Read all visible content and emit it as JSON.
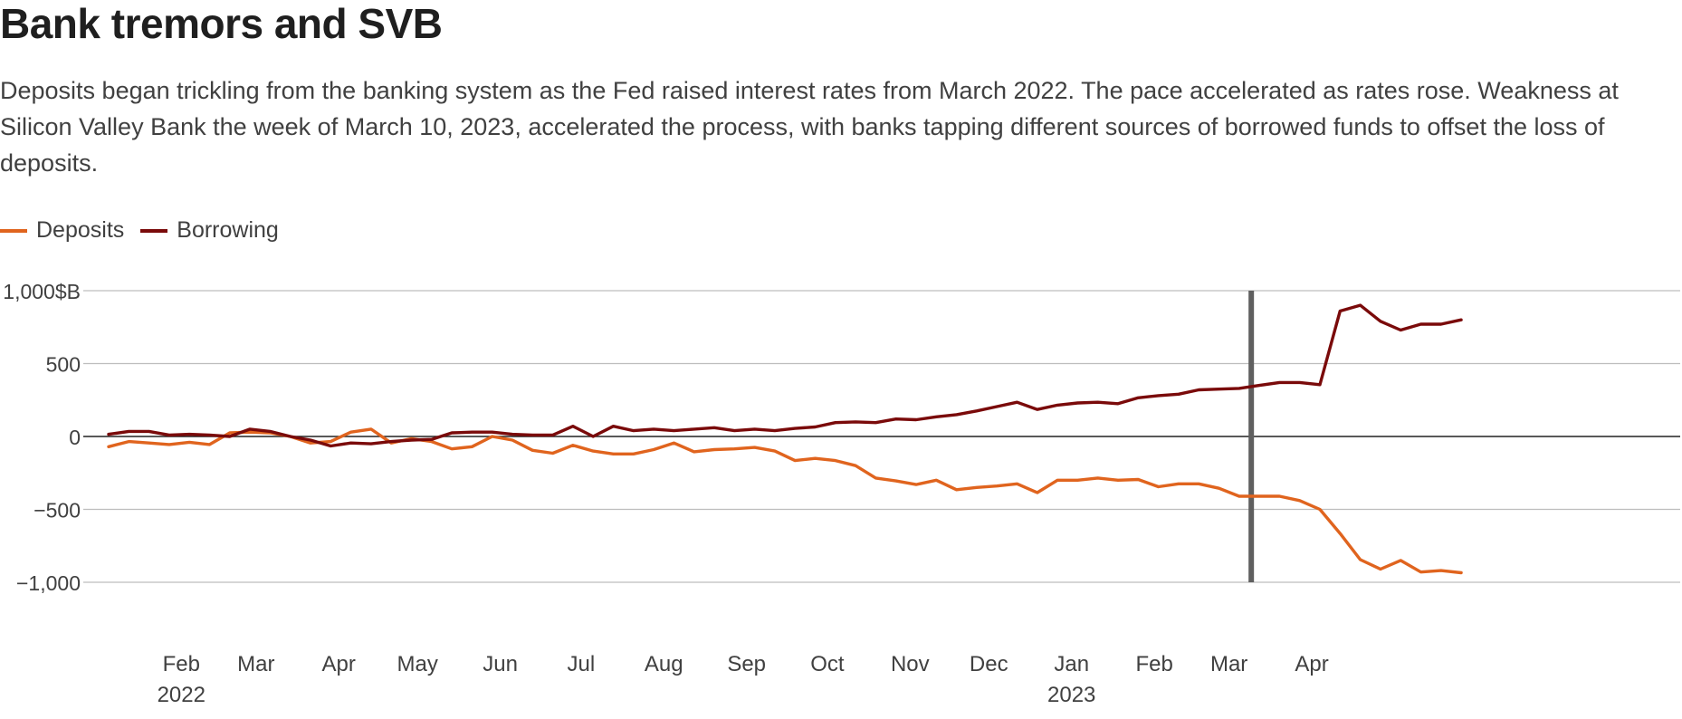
{
  "header": {
    "title": "Bank tremors and SVB",
    "subtitle": "Deposits began trickling from the banking system as the Fed raised interest rates from March 2022. The pace accelerated as rates rose. Weakness at Silicon Valley Bank the week of March 10, 2023, accelerated the process, with banks tapping different sources of borrowed funds to offset the loss of deposits."
  },
  "legend": {
    "items": [
      {
        "label": "Deposits",
        "color": "#e0641e"
      },
      {
        "label": "Borrowing",
        "color": "#7a0a0a"
      }
    ]
  },
  "chart_data": {
    "type": "line",
    "title": "Bank tremors and SVB",
    "ylabel": "",
    "xlabel": "",
    "ylim": [
      -1000,
      1000
    ],
    "y_ticks": [
      {
        "value": 1000,
        "label": "1,000$B"
      },
      {
        "value": 500,
        "label": "500"
      },
      {
        "value": 0,
        "label": "0"
      },
      {
        "value": -500,
        "label": "−500"
      },
      {
        "value": -1000,
        "label": "−1,000"
      }
    ],
    "x_ticks": [
      {
        "index": 3.6,
        "label": "Feb",
        "year": "2022"
      },
      {
        "index": 7.3,
        "label": "Mar",
        "year": ""
      },
      {
        "index": 11.4,
        "label": "Apr",
        "year": ""
      },
      {
        "index": 15.3,
        "label": "May",
        "year": ""
      },
      {
        "index": 19.4,
        "label": "Jun",
        "year": ""
      },
      {
        "index": 23.4,
        "label": "Jul",
        "year": ""
      },
      {
        "index": 27.5,
        "label": "Aug",
        "year": ""
      },
      {
        "index": 31.6,
        "label": "Sep",
        "year": ""
      },
      {
        "index": 35.6,
        "label": "Oct",
        "year": ""
      },
      {
        "index": 39.7,
        "label": "Nov",
        "year": ""
      },
      {
        "index": 43.6,
        "label": "Dec",
        "year": ""
      },
      {
        "index": 47.7,
        "label": "Jan",
        "year": "2023"
      },
      {
        "index": 51.8,
        "label": "Feb",
        "year": ""
      },
      {
        "index": 55.5,
        "label": "Mar",
        "year": ""
      },
      {
        "index": 59.6,
        "label": "Apr",
        "year": ""
      }
    ],
    "annotation": {
      "label": "",
      "index": 56.6
    },
    "grid": true,
    "legend_position": "top-left",
    "series": [
      {
        "name": "Deposits",
        "color": "#e0641e",
        "values": [
          -70,
          -35,
          -45,
          -55,
          -40,
          -55,
          25,
          30,
          25,
          0,
          -45,
          -35,
          30,
          50,
          -45,
          -15,
          -35,
          -85,
          -70,
          0,
          -25,
          -95,
          -115,
          -60,
          -100,
          -120,
          -120,
          -90,
          -45,
          -105,
          -90,
          -85,
          -75,
          -100,
          -165,
          -150,
          -165,
          -200,
          -285,
          -305,
          -330,
          -300,
          -365,
          -350,
          -340,
          -325,
          -385,
          -300,
          -300,
          -285,
          -300,
          -295,
          -345,
          -325,
          -325,
          -355,
          -410,
          -410,
          -410,
          -440,
          -500,
          -665,
          -845,
          -910,
          -850,
          -930,
          -920,
          -935
        ]
      },
      {
        "name": "Borrowing",
        "color": "#7a0a0a",
        "values": [
          15,
          35,
          35,
          10,
          15,
          10,
          0,
          50,
          35,
          0,
          -25,
          -65,
          -45,
          -50,
          -35,
          -25,
          -20,
          25,
          30,
          30,
          15,
          10,
          10,
          70,
          0,
          70,
          40,
          50,
          40,
          50,
          60,
          40,
          50,
          40,
          55,
          65,
          95,
          100,
          95,
          120,
          115,
          135,
          150,
          175,
          205,
          235,
          185,
          215,
          230,
          235,
          225,
          265,
          280,
          290,
          320,
          325,
          330,
          350,
          370,
          370,
          355,
          860,
          900,
          790,
          730,
          770,
          770,
          800
        ]
      }
    ]
  }
}
